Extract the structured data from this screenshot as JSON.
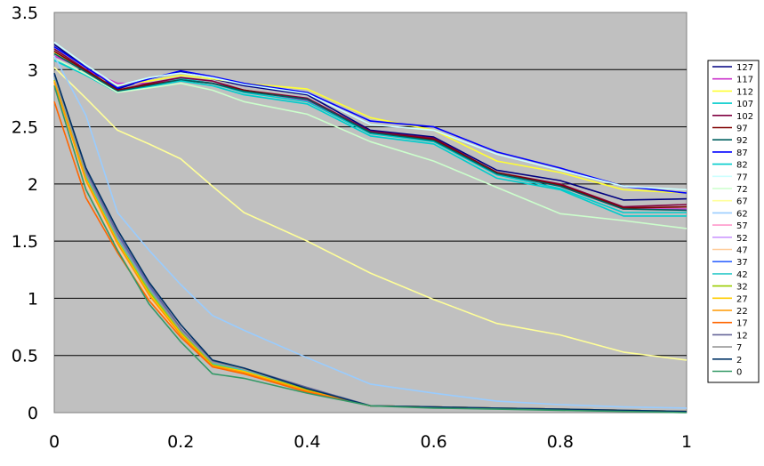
{
  "chart_data": {
    "type": "line",
    "title": "",
    "xlabel": "",
    "ylabel": "",
    "xlim": [
      0,
      1
    ],
    "ylim": [
      0,
      3.5
    ],
    "x_ticks": [
      "0",
      "0.2",
      "0.4",
      "0.6",
      "0.8",
      "1"
    ],
    "y_ticks": [
      "0",
      "0.5",
      "1",
      "1.5",
      "2",
      "2.5",
      "3",
      "3.5"
    ],
    "grid": "horizontal",
    "plot_background": "#c0c0c0",
    "legend_position": "right",
    "x": [
      0,
      0.05,
      0.1,
      0.15,
      0.2,
      0.25,
      0.3,
      0.4,
      0.5,
      0.6,
      0.7,
      0.8,
      0.9,
      1
    ],
    "series": [
      {
        "name": "127",
        "color": "#000080",
        "values": [
          3.22,
          3.02,
          2.83,
          2.92,
          2.98,
          2.92,
          2.86,
          2.78,
          2.47,
          2.41,
          2.12,
          2.03,
          1.86,
          1.87
        ]
      },
      {
        "name": "117",
        "color": "#cc33cc",
        "values": [
          3.12,
          3.0,
          2.88,
          2.88,
          2.92,
          2.88,
          2.82,
          2.73,
          2.45,
          2.38,
          2.09,
          1.98,
          1.78,
          1.78
        ]
      },
      {
        "name": "112",
        "color": "#ffff33",
        "values": [
          3.15,
          2.98,
          2.86,
          2.9,
          2.95,
          2.92,
          2.88,
          2.83,
          2.58,
          2.47,
          2.2,
          2.1,
          1.95,
          1.92
        ]
      },
      {
        "name": "107",
        "color": "#00cccc",
        "values": [
          3.1,
          2.95,
          2.8,
          2.86,
          2.92,
          2.88,
          2.8,
          2.72,
          2.44,
          2.37,
          2.08,
          1.96,
          1.75,
          1.75
        ]
      },
      {
        "name": "102",
        "color": "#800040",
        "values": [
          3.18,
          3.0,
          2.82,
          2.88,
          2.93,
          2.9,
          2.82,
          2.75,
          2.46,
          2.4,
          2.1,
          2.0,
          1.8,
          1.82
        ]
      },
      {
        "name": "97",
        "color": "#800000",
        "values": [
          3.16,
          2.99,
          2.82,
          2.87,
          2.91,
          2.88,
          2.82,
          2.74,
          2.45,
          2.39,
          2.1,
          1.99,
          1.79,
          1.8
        ]
      },
      {
        "name": "92",
        "color": "#006060",
        "values": [
          3.14,
          2.98,
          2.81,
          2.86,
          2.91,
          2.88,
          2.81,
          2.74,
          2.45,
          2.38,
          2.09,
          1.98,
          1.78,
          1.77
        ]
      },
      {
        "name": "87",
        "color": "#0000ff",
        "values": [
          3.2,
          3.02,
          2.84,
          2.92,
          2.99,
          2.94,
          2.88,
          2.8,
          2.55,
          2.5,
          2.28,
          2.14,
          1.98,
          1.92
        ]
      },
      {
        "name": "82",
        "color": "#00cccc",
        "values": [
          3.08,
          2.95,
          2.8,
          2.85,
          2.9,
          2.86,
          2.78,
          2.7,
          2.42,
          2.35,
          2.05,
          1.95,
          1.72,
          1.72
        ]
      },
      {
        "name": "77",
        "color": "#ccffff",
        "values": [
          3.24,
          3.04,
          2.86,
          2.93,
          2.97,
          2.93,
          2.87,
          2.79,
          2.52,
          2.47,
          2.26,
          2.12,
          1.98,
          1.95
        ]
      },
      {
        "name": "72",
        "color": "#ccffcc",
        "values": [
          3.1,
          2.96,
          2.8,
          2.84,
          2.88,
          2.82,
          2.72,
          2.61,
          2.37,
          2.2,
          1.97,
          1.74,
          1.68,
          1.61
        ]
      },
      {
        "name": "67",
        "color": "#ffff99",
        "values": [
          3.02,
          2.75,
          2.47,
          2.35,
          2.22,
          1.98,
          1.75,
          1.5,
          1.22,
          0.99,
          0.78,
          0.68,
          0.53,
          0.46
        ]
      },
      {
        "name": "62",
        "color": "#99ccff",
        "values": [
          3.12,
          2.6,
          1.75,
          1.42,
          1.12,
          0.85,
          0.72,
          0.48,
          0.25,
          0.17,
          0.1,
          0.07,
          0.05,
          0.04
        ]
      },
      {
        "name": "57",
        "color": "#ff99cc",
        "values": [
          2.9,
          2.05,
          1.5,
          1.05,
          0.7,
          0.42,
          0.37,
          0.2,
          0.06,
          0.05,
          0.04,
          0.03,
          0.02,
          0.01
        ]
      },
      {
        "name": "52",
        "color": "#cc99ff",
        "values": [
          2.92,
          2.06,
          1.52,
          1.07,
          0.72,
          0.43,
          0.38,
          0.21,
          0.06,
          0.05,
          0.04,
          0.03,
          0.02,
          0.01
        ]
      },
      {
        "name": "47",
        "color": "#ffcc99",
        "values": [
          2.88,
          2.0,
          1.45,
          1.0,
          0.68,
          0.4,
          0.35,
          0.19,
          0.06,
          0.05,
          0.04,
          0.03,
          0.02,
          0.01
        ]
      },
      {
        "name": "37",
        "color": "#3366ff",
        "values": [
          2.95,
          2.1,
          1.55,
          1.1,
          0.72,
          0.44,
          0.38,
          0.21,
          0.06,
          0.05,
          0.04,
          0.03,
          0.02,
          0.01
        ]
      },
      {
        "name": "42",
        "color": "#33cccc",
        "values": [
          2.93,
          2.07,
          1.53,
          1.08,
          0.71,
          0.43,
          0.37,
          0.2,
          0.06,
          0.05,
          0.04,
          0.03,
          0.02,
          0.01
        ]
      },
      {
        "name": "32",
        "color": "#99cc00",
        "values": [
          2.91,
          2.05,
          1.5,
          1.06,
          0.7,
          0.42,
          0.36,
          0.2,
          0.06,
          0.05,
          0.04,
          0.03,
          0.02,
          0.01
        ]
      },
      {
        "name": "27",
        "color": "#ffcc00",
        "values": [
          2.9,
          2.04,
          1.49,
          1.04,
          0.69,
          0.41,
          0.36,
          0.19,
          0.06,
          0.05,
          0.04,
          0.03,
          0.02,
          0.01
        ]
      },
      {
        "name": "22",
        "color": "#ff9900",
        "values": [
          2.89,
          2.03,
          1.48,
          1.03,
          0.68,
          0.41,
          0.35,
          0.19,
          0.06,
          0.05,
          0.04,
          0.03,
          0.02,
          0.01
        ]
      },
      {
        "name": "17",
        "color": "#ff6600",
        "values": [
          2.72,
          1.88,
          1.4,
          0.98,
          0.66,
          0.4,
          0.34,
          0.18,
          0.06,
          0.05,
          0.04,
          0.03,
          0.02,
          0.01
        ]
      },
      {
        "name": "12",
        "color": "#666699",
        "values": [
          2.96,
          2.12,
          1.57,
          1.12,
          0.74,
          0.45,
          0.39,
          0.22,
          0.06,
          0.05,
          0.04,
          0.03,
          0.02,
          0.01
        ]
      },
      {
        "name": "7",
        "color": "#969696",
        "values": [
          2.94,
          2.09,
          1.54,
          1.09,
          0.72,
          0.44,
          0.38,
          0.21,
          0.06,
          0.05,
          0.04,
          0.03,
          0.02,
          0.01
        ]
      },
      {
        "name": "2",
        "color": "#003366",
        "values": [
          2.97,
          2.14,
          1.6,
          1.14,
          0.77,
          0.46,
          0.39,
          0.21,
          0.06,
          0.05,
          0.04,
          0.03,
          0.02,
          0.01
        ]
      },
      {
        "name": "0",
        "color": "#339966",
        "values": [
          2.86,
          1.95,
          1.42,
          0.95,
          0.62,
          0.34,
          0.3,
          0.17,
          0.06,
          0.04,
          0.03,
          0.02,
          0.01,
          0.0
        ]
      }
    ]
  }
}
